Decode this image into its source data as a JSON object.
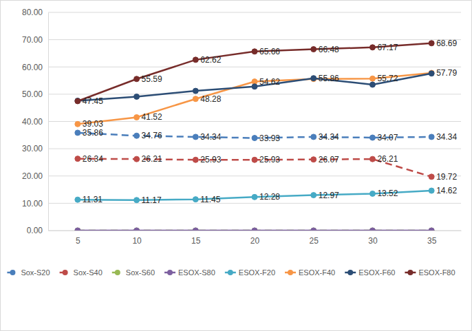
{
  "chart_data": {
    "type": "line",
    "categories": [
      "5",
      "10",
      "15",
      "20",
      "25",
      "30",
      "35"
    ],
    "ylim": [
      0,
      80
    ],
    "yticks": [
      {
        "value": 0,
        "label": "0.00"
      },
      {
        "value": 10,
        "label": "10.00"
      },
      {
        "value": 20,
        "label": "20.00"
      },
      {
        "value": 30,
        "label": "30.00"
      },
      {
        "value": 40,
        "label": "40.00"
      },
      {
        "value": 50,
        "label": "50.00"
      },
      {
        "value": 60,
        "label": "60.00"
      },
      {
        "value": 70,
        "label": "70.00"
      },
      {
        "value": 80,
        "label": "80.00"
      }
    ],
    "grid": true,
    "legend": "bottom",
    "series": [
      {
        "name": "Sox-S20",
        "color": "#4a7ebb",
        "marker": "circle",
        "line_style": "dashed",
        "data_labels": true,
        "values": [
          35.86,
          34.76,
          34.34,
          33.93,
          34.34,
          34.07,
          34.34
        ]
      },
      {
        "name": "Sox-S40",
        "color": "#be4b48",
        "marker": "circle",
        "line_style": "dashed",
        "data_labels": true,
        "values": [
          26.34,
          26.21,
          25.93,
          25.93,
          26.07,
          26.21,
          19.72
        ]
      },
      {
        "name": "Sox-S60",
        "color": "#98b954",
        "marker": "circle",
        "line_style": "dashed",
        "values": [
          0,
          0,
          0,
          0,
          0,
          0,
          0
        ]
      },
      {
        "name": "ESOX-S80",
        "color": "#7d60a0",
        "marker": "circle",
        "line_style": "solid",
        "values": [
          0,
          0,
          0,
          0,
          0,
          0,
          0
        ]
      },
      {
        "name": "ESOX-F20",
        "color": "#46aac5",
        "marker": "circle",
        "line_style": "solid",
        "data_labels": true,
        "values": [
          11.31,
          11.17,
          11.45,
          12.28,
          12.97,
          13.52,
          14.62
        ]
      },
      {
        "name": "ESOX-F40",
        "color": "#f79646",
        "marker": "circle",
        "line_style": "solid",
        "values": [
          39.03,
          41.52,
          48.28,
          54.62,
          55.6,
          55.72,
          57.79
        ],
        "value_labels": [
          "39.03",
          "41.52",
          "48.28",
          "54.62",
          null,
          "55.72",
          "57.79"
        ]
      },
      {
        "name": "ESOX-F60",
        "color": "#2c4d75",
        "marker": "circle",
        "line_style": "solid",
        "values": [
          47.6,
          49.1,
          51.2,
          52.8,
          55.86,
          53.5,
          57.6
        ],
        "value_labels": [
          null,
          null,
          null,
          null,
          "55.86",
          null,
          null
        ]
      },
      {
        "name": "ESOX-F80",
        "color": "#772c2a",
        "marker": "circle",
        "line_style": "solid",
        "data_labels": true,
        "values": [
          47.45,
          55.59,
          62.62,
          65.66,
          66.48,
          67.17,
          68.69
        ]
      }
    ]
  }
}
